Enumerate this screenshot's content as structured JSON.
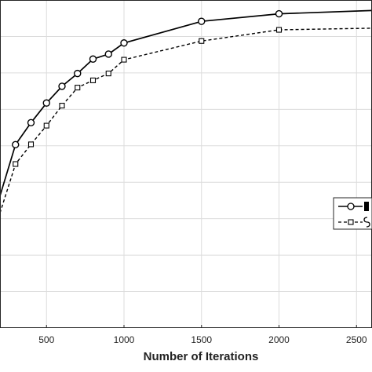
{
  "chart_data": {
    "type": "line",
    "title": "",
    "xlabel": "Number of Iterations",
    "ylabel": "",
    "xlim": [
      200,
      2600
    ],
    "ylim": [
      0,
      1
    ],
    "grid": true,
    "legend_placement": "right",
    "x_ticks": [
      500,
      1000,
      1500,
      2000,
      2500
    ],
    "x_tick_labels": [
      "500",
      "1000",
      "1500",
      "2000",
      "2500"
    ],
    "series": [
      {
        "marker": "circle",
        "line_style": "solid",
        "color": "#000000",
        "x": [
          200,
          300,
          400,
          500,
          600,
          700,
          800,
          900,
          1000,
          1500,
          2000,
          2600
        ],
        "y": [
          0.403,
          0.559,
          0.626,
          0.686,
          0.737,
          0.776,
          0.82,
          0.835,
          0.869,
          0.935,
          0.958,
          0.968
        ]
      },
      {
        "marker": "square",
        "line_style": "dashed",
        "color": "#000000",
        "x": [
          200,
          300,
          400,
          500,
          600,
          700,
          800,
          900,
          1000,
          1500,
          2000,
          2600
        ],
        "y": [
          0.351,
          0.5,
          0.56,
          0.617,
          0.678,
          0.733,
          0.755,
          0.776,
          0.818,
          0.875,
          0.909,
          0.914
        ]
      }
    ]
  }
}
